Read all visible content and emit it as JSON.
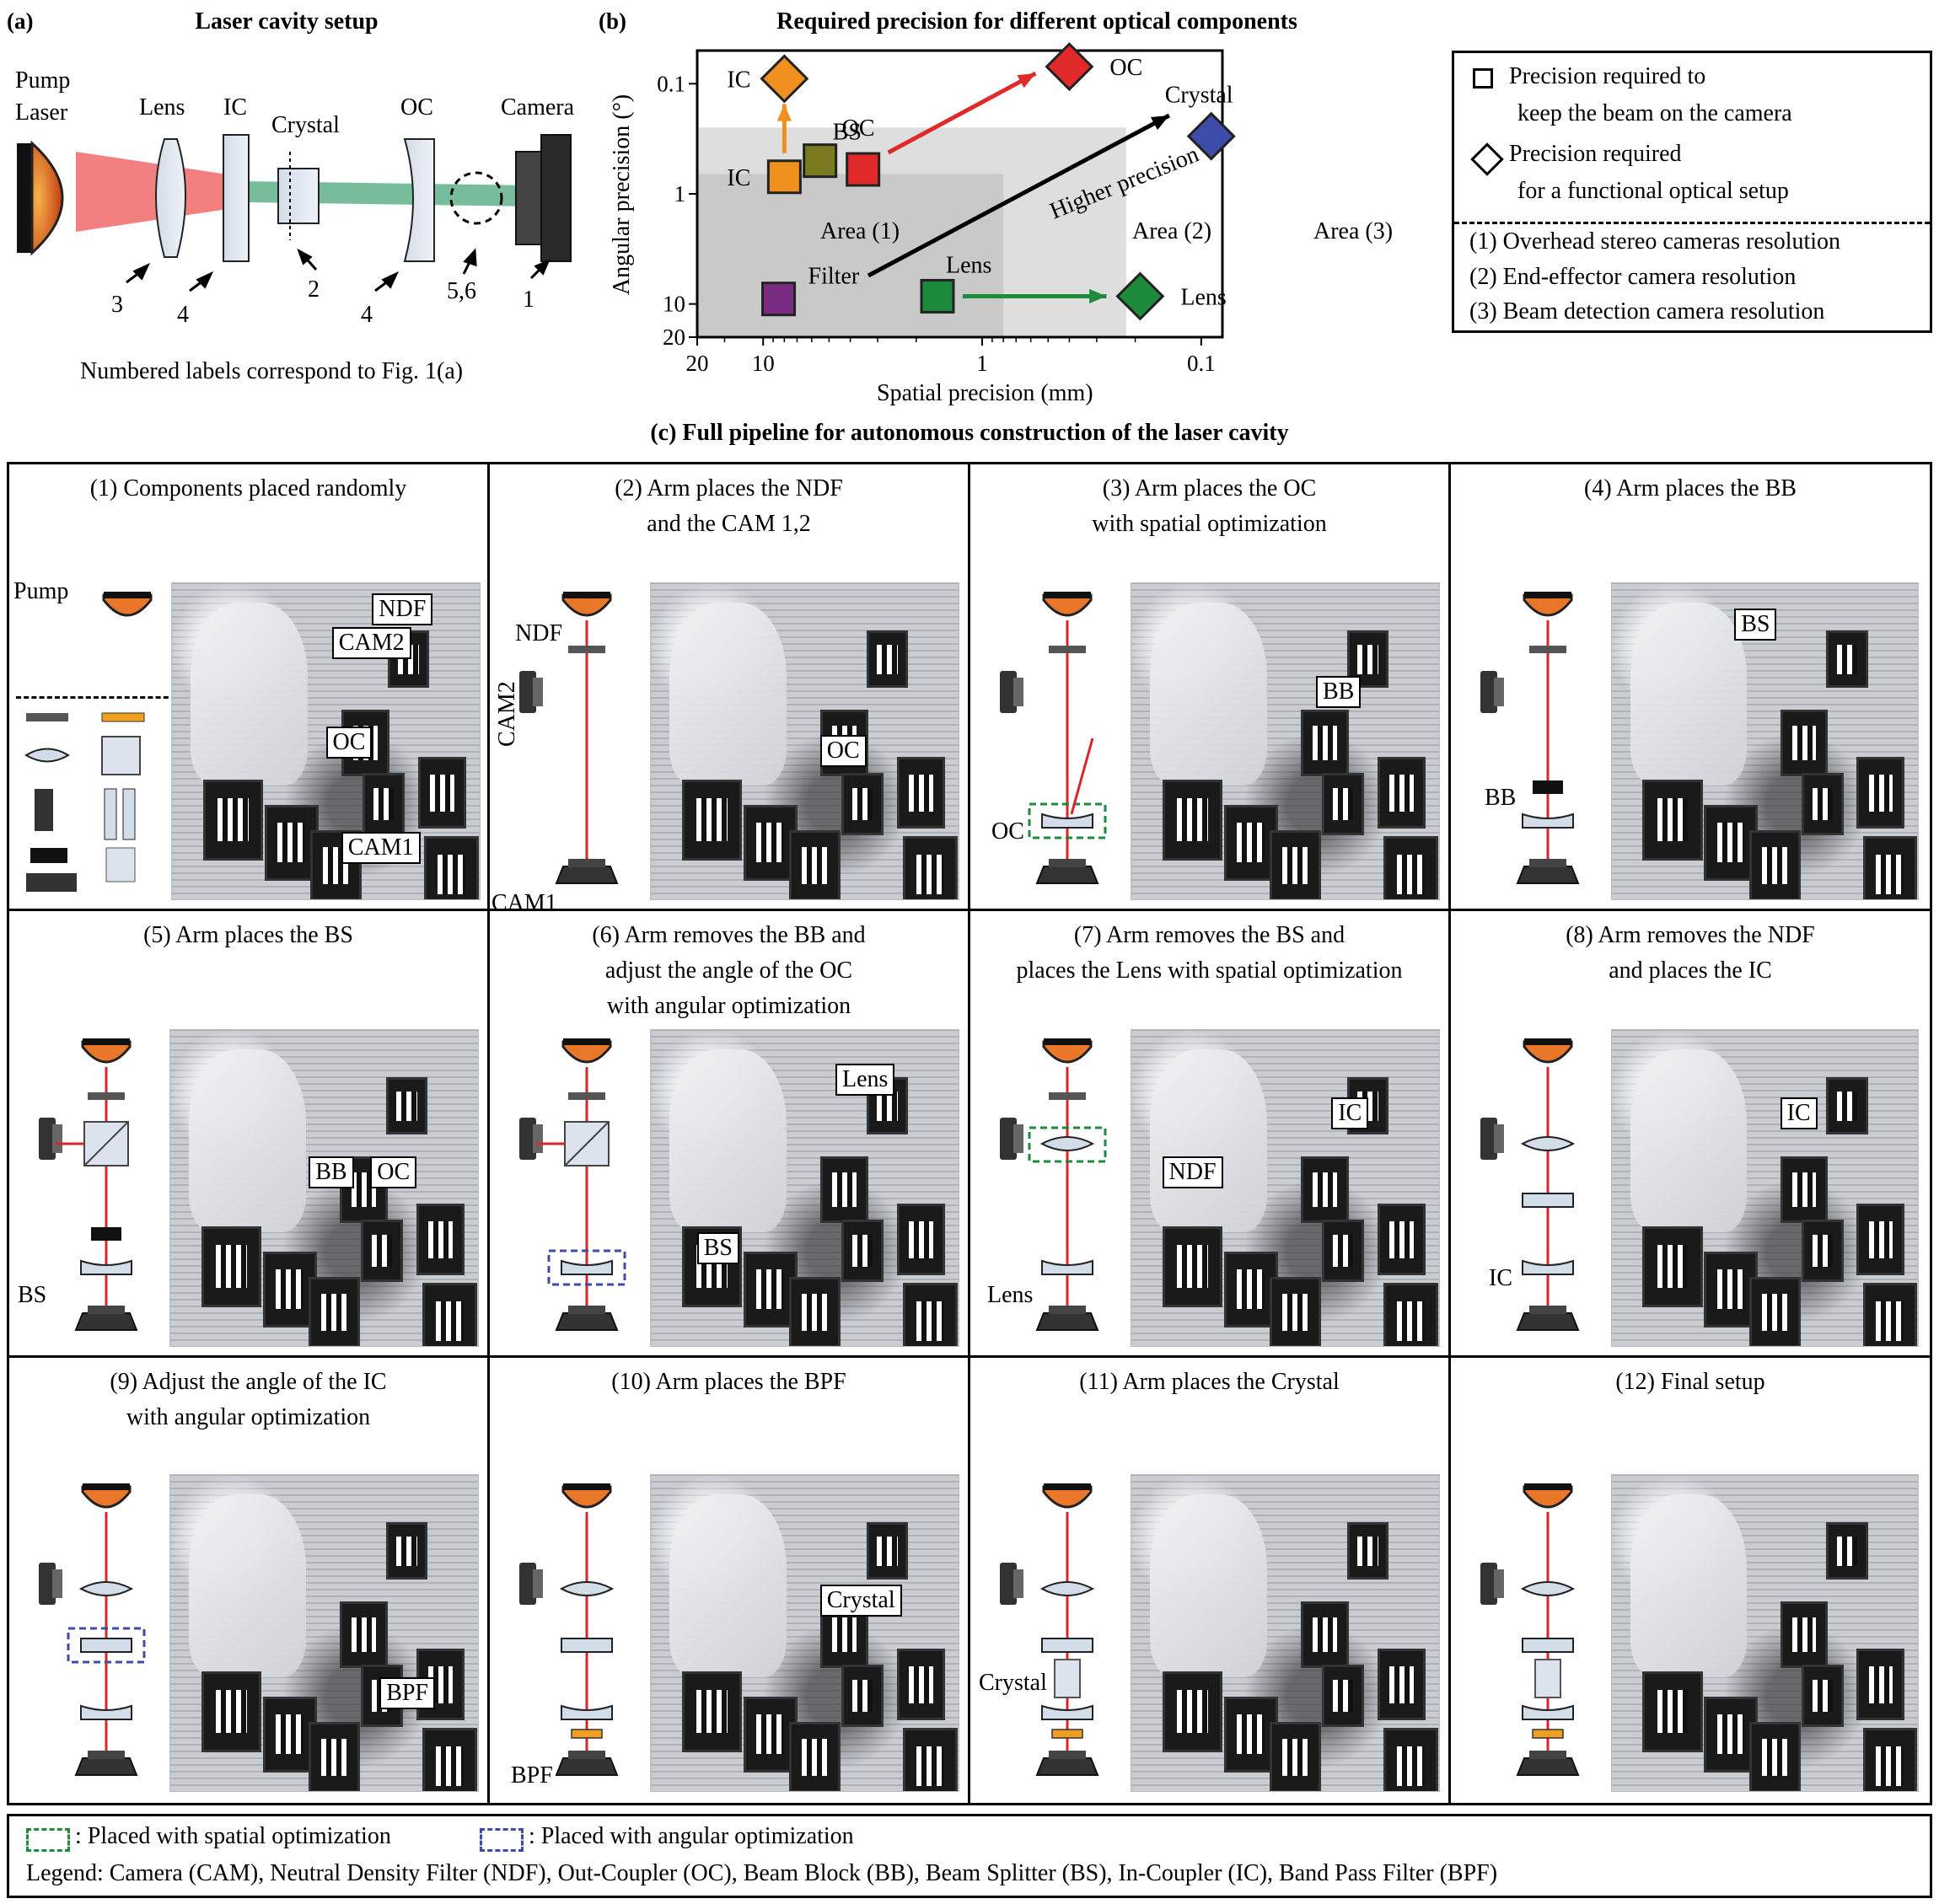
{
  "panel_a": {
    "tag": "(a)",
    "title": "Laser cavity setup",
    "labels": {
      "pump": "Pump",
      "laser": "Laser",
      "lens": "Lens",
      "ic": "IC",
      "crystal": "Crystal",
      "oc": "OC",
      "camera": "Camera"
    },
    "numbers": [
      "3",
      "4",
      "2",
      "4",
      "5,6",
      "1"
    ],
    "caption": "Numbered labels correspond to Fig. 1(a)"
  },
  "panel_b": {
    "tag": "(b)",
    "title": "Required precision for different optical components",
    "legend": {
      "square_line1": "Precision required to",
      "square_line2": "keep the beam on the camera",
      "diamond_line1": "Precision required",
      "diamond_line2": "for a functional optical setup",
      "res1": "(1) Overhead stereo cameras resolution",
      "res2": "(2) End-effector camera resolution",
      "res3": "(3) Beam detection camera resolution"
    }
  },
  "chart_data": {
    "type": "scatter",
    "xlabel": "Spatial precision (mm)",
    "ylabel": "Angular precision (°)",
    "x_scale": "log-reversed",
    "y_scale": "log-reversed",
    "xlim": [
      20,
      0.08
    ],
    "ylim": [
      20,
      0.05
    ],
    "x_ticks": [
      "20",
      "10",
      "1",
      "0.1"
    ],
    "y_ticks": [
      "0.1",
      "1",
      "10",
      "20"
    ],
    "areas": [
      {
        "label": "Area (1)",
        "x_max_precision": 0.8,
        "y_max_precision": 0.25,
        "color": "#c9c9c9"
      },
      {
        "label": "Area (2)",
        "x_max_precision": 0.22,
        "y_max_precision": 0.25,
        "color": "#dedede"
      },
      {
        "label": "Area (3)",
        "x_max_precision": 0.08,
        "y_max_precision": 0.05,
        "color": "#ffffff"
      }
    ],
    "points": [
      {
        "label": "IC",
        "shape": "diamond",
        "x": 8,
        "y": 0.09,
        "color": "#f0901e"
      },
      {
        "label": "IC",
        "shape": "square",
        "x": 8,
        "y": 0.7,
        "color": "#f0901e"
      },
      {
        "label": "BS",
        "shape": "square",
        "x": 5.5,
        "y": 0.5,
        "color": "#7a7a1e"
      },
      {
        "label": "OC",
        "shape": "square",
        "x": 3.5,
        "y": 0.6,
        "color": "#e02a2a"
      },
      {
        "label": "OC",
        "shape": "diamond",
        "x": 0.4,
        "y": 0.07,
        "color": "#e02a2a"
      },
      {
        "label": "Crystal",
        "shape": "diamond",
        "x": 0.09,
        "y": 0.3,
        "color": "#3c4ca8"
      },
      {
        "label": "Filter",
        "shape": "square",
        "x": 8.5,
        "y": 9,
        "color": "#7a2c82"
      },
      {
        "label": "Lens",
        "shape": "square",
        "x": 1.6,
        "y": 8.5,
        "color": "#1e8a3c"
      },
      {
        "label": "Lens",
        "shape": "diamond",
        "x": 0.19,
        "y": 8.5,
        "color": "#1e8a3c"
      }
    ],
    "annotation": "Higher precision"
  },
  "panel_c": {
    "title": "(c) Full pipeline for autonomous construction of the laser cavity",
    "steps": [
      {
        "t1": "(1) Components placed randomly",
        "t2": ""
      },
      {
        "t1": "(2) Arm places the NDF",
        "t2": "and the CAM 1,2"
      },
      {
        "t1": "(3) Arm places the OC",
        "t2": "with spatial optimization"
      },
      {
        "t1": "(4) Arm places the BB",
        "t2": ""
      },
      {
        "t1": "(5) Arm places the BS",
        "t2": ""
      },
      {
        "t1": "(6) Arm removes the BB and",
        "t2": "adjust the angle of the OC",
        "t3": "with angular optimization"
      },
      {
        "t1": "(7) Arm removes the BS and",
        "t2": "places the Lens with spatial optimization"
      },
      {
        "t1": "(8) Arm removes the NDF",
        "t2": "and places the IC"
      },
      {
        "t1": "(9) Adjust the angle of the IC",
        "t2": "with angular optimization"
      },
      {
        "t1": "(10) Arm places the BPF",
        "t2": ""
      },
      {
        "t1": "(11) Arm places the Crystal",
        "t2": ""
      },
      {
        "t1": "(12) Final setup",
        "t2": ""
      }
    ],
    "diagram_labels": {
      "pump": "Pump",
      "ndf": "NDF",
      "cam2": "CAM2",
      "cam1": "CAM1",
      "oc": "OC",
      "bb": "BB",
      "bs": "BS",
      "lens": "Lens",
      "ic": "IC",
      "bpf": "BPF",
      "crystal": "Crystal"
    },
    "photo_tags": [
      [
        "NDF",
        "CAM2",
        "OC",
        "CAM1"
      ],
      [
        "OC"
      ],
      [
        "BB"
      ],
      [
        "BS"
      ],
      [
        "BB",
        "OC"
      ],
      [
        "Lens",
        "BS"
      ],
      [
        "IC",
        "NDF"
      ],
      [
        "IC"
      ],
      [
        "BPF"
      ],
      [
        "Crystal"
      ]
    ]
  },
  "footer": {
    "spatial": ": Placed with spatial optimization",
    "angular": ": Placed with angular optimization",
    "legend": "Legend: Camera (CAM), Neutral Density Filter (NDF), Out-Coupler (OC), Beam Block (BB), Beam Splitter (BS), In-Coupler (IC), Band Pass Filter (BPF)"
  }
}
